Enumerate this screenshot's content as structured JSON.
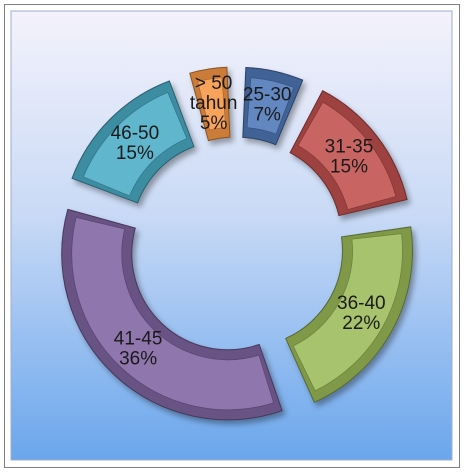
{
  "chart_data": {
    "type": "pie",
    "subtype": "exploded-doughnut",
    "slices": [
      {
        "label_lines": [
          "25-30",
          "7%"
        ],
        "value": 7,
        "color": "#4f78b8"
      },
      {
        "label_lines": [
          "31-35",
          "15%"
        ],
        "value": 15,
        "color": "#c0504d"
      },
      {
        "label_lines": [
          "36-40",
          "22%"
        ],
        "value": 22,
        "color": "#9bbb59"
      },
      {
        "label_lines": [
          "41-45",
          "36%"
        ],
        "value": 36,
        "color": "#8064a2"
      },
      {
        "label_lines": [
          "46-50",
          "15%"
        ],
        "value": 15,
        "color": "#4bacc6"
      },
      {
        "label_lines": [
          "> 50",
          "tahun",
          "5%"
        ],
        "value": 5,
        "color": "#f79646"
      }
    ],
    "legend": "none"
  }
}
